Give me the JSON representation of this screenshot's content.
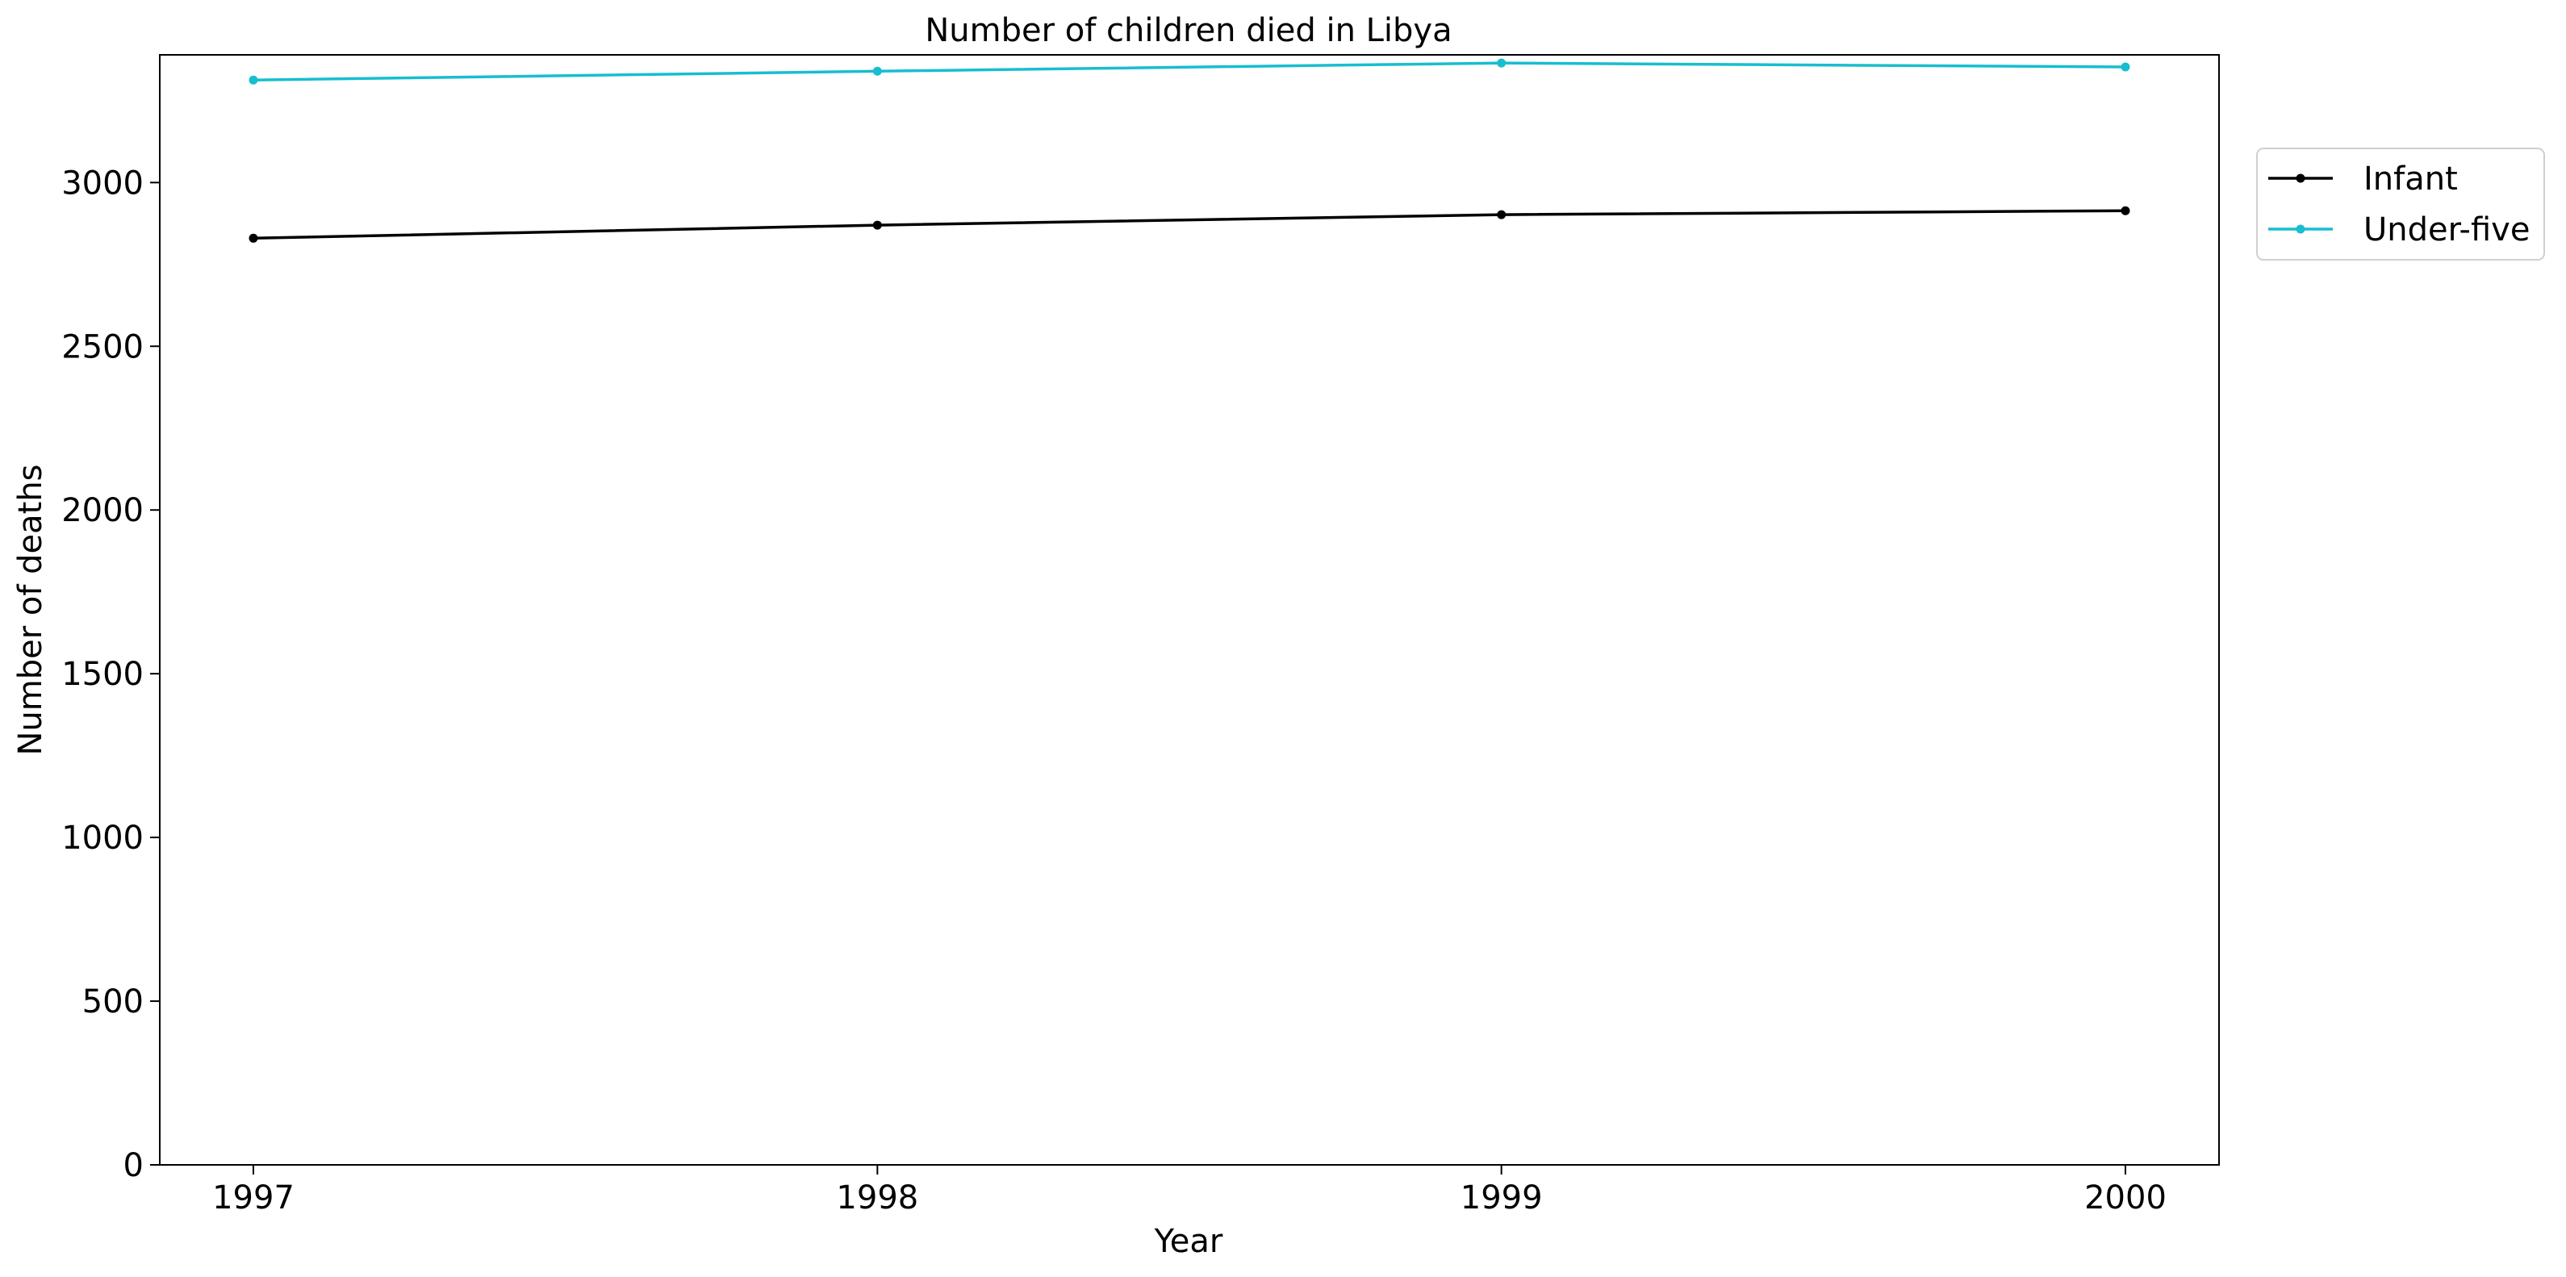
{
  "chart_data": {
    "type": "line",
    "title": "Number of children died in Libya",
    "xlabel": "Year",
    "ylabel": "Number of deaths",
    "x": [
      1997,
      1998,
      1999,
      2000
    ],
    "xticks": [
      "1997",
      "1998",
      "1999",
      "2000"
    ],
    "yticks": [
      0,
      500,
      1000,
      1500,
      2000,
      2500,
      3000
    ],
    "ylim": [
      0,
      3390
    ],
    "xlim": [
      1996.85,
      2000.15
    ],
    "grid": false,
    "legend_position": "outside-top-right",
    "series": [
      {
        "name": "Infant",
        "color": "#000000",
        "marker": "point",
        "values": [
          2830,
          2870,
          2902,
          2914
        ]
      },
      {
        "name": "Under-five",
        "color": "#17becf",
        "marker": "point",
        "values": [
          3313,
          3340,
          3365,
          3353
        ]
      }
    ]
  }
}
